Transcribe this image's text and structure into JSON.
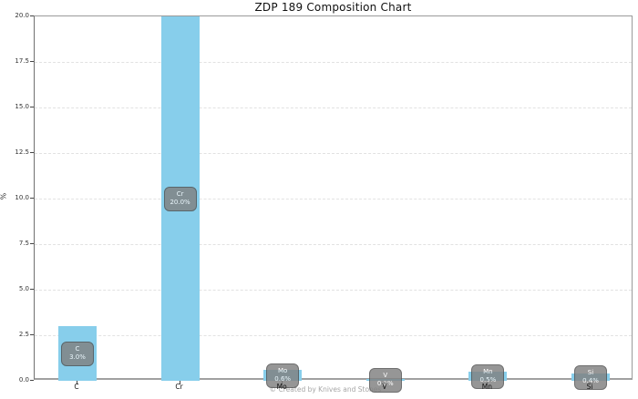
{
  "title": "ZDP 189 Composition Chart",
  "watermark": "© Created by Knives and Stones",
  "chart_data": {
    "type": "bar",
    "title": "ZDP 189 Composition Chart",
    "xlabel": "",
    "ylabel": "%",
    "categories": [
      "C",
      "Cr",
      "Mo",
      "V",
      "Mn",
      "Si"
    ],
    "values": [
      3.0,
      20.0,
      0.6,
      0.1,
      0.5,
      0.4
    ],
    "bar_labels": [
      {
        "name": "C",
        "pct": "3.0%"
      },
      {
        "name": "Cr",
        "pct": "20.0%"
      },
      {
        "name": "Mo",
        "pct": "0.6%"
      },
      {
        "name": "V",
        "pct": "0.1%"
      },
      {
        "name": "Mn",
        "pct": "0.5%"
      },
      {
        "name": "Si",
        "pct": "0.4%"
      }
    ],
    "ylim": [
      0,
      20
    ],
    "yticks": [
      0.0,
      2.5,
      5.0,
      7.5,
      10.0,
      12.5,
      15.0,
      17.5,
      20.0
    ],
    "ytick_labels": [
      "0.0",
      "2.5",
      "5.0",
      "7.5",
      "10.0",
      "12.5",
      "15.0",
      "17.5",
      "20.0"
    ],
    "grid": "horizontal-dashed",
    "legend": "none",
    "bar_color": "#87CEEB",
    "label_box_bg": "#808080",
    "label_box_opacity": 0.82,
    "label_box_border": "#505050"
  }
}
